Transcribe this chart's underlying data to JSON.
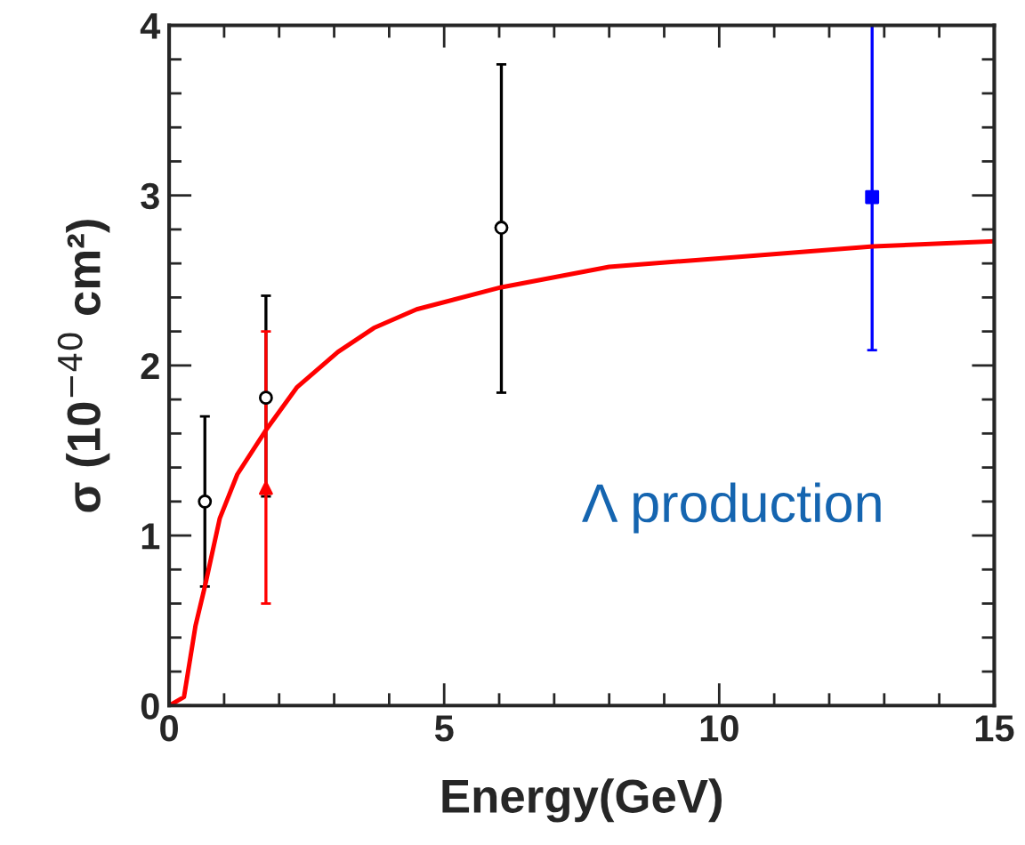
{
  "chart_data": {
    "type": "scatter",
    "xlabel": "Energy(GeV)",
    "ylabel": "σ (10$^{−40}$ cm²)",
    "xlim": [
      0,
      15
    ],
    "xticks": [
      0,
      5,
      10,
      15
    ],
    "ylim": [
      0,
      4
    ],
    "yticks": [
      0,
      1,
      2,
      3,
      4
    ],
    "grid": false,
    "legend": false,
    "annotations": [
      "Λ production"
    ],
    "series": [
      {
        "color": "#000000",
        "marker": "circle",
        "x": [
          0.65,
          1.76,
          6.04
        ],
        "values": [
          1.2,
          1.81,
          2.81
        ],
        "errors": [
          [
            0.7,
            1.7
          ],
          [
            1.23,
            2.41
          ],
          [
            1.84,
            3.77
          ]
        ]
      },
      {
        "color": "#ff0000",
        "marker": "triangle",
        "x": [
          1.76
        ],
        "values": [
          1.28
        ],
        "errors": [
          [
            0.6,
            2.2
          ]
        ]
      },
      {
        "color": "#0000ff",
        "marker": "square",
        "x": [
          12.78
        ],
        "values": [
          2.99
        ],
        "errors": [
          [
            2.09,
            4.0
          ]
        ]
      },
      {
        "type": "line",
        "color": "#ff0000",
        "marker": "none",
        "x": [
          0,
          0.27,
          0.48,
          0.65,
          0.92,
          1.24,
          1.76,
          2.32,
          3.07,
          3.72,
          4.5,
          6.04,
          8,
          10,
          12.8,
          15
        ],
        "values": [
          0,
          0.05,
          0.47,
          0.7,
          1.1,
          1.36,
          1.62,
          1.87,
          2.08,
          2.22,
          2.33,
          2.46,
          2.58,
          2.63,
          2.7,
          2.73
        ]
      }
    ]
  }
}
